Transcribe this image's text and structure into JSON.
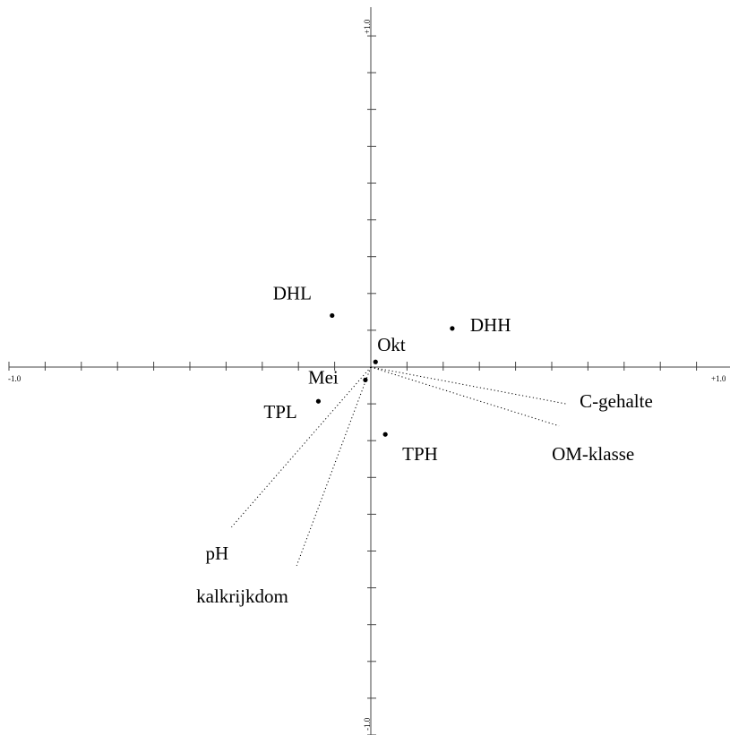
{
  "chart_data": {
    "type": "scatter",
    "title": "",
    "xlabel": "",
    "ylabel": "",
    "xlim": [
      -1.0,
      1.0
    ],
    "ylim": [
      -1.0,
      1.0
    ],
    "grid": false,
    "tick_step": 0.1,
    "tick_labels": {
      "x_min": "-1.0",
      "x_max": "+1.0",
      "y_max": "+1.0",
      "y_min": "-1.0"
    },
    "points": [
      {
        "label": "DHL",
        "x": -0.107,
        "y": 0.14
      },
      {
        "label": "DHH",
        "x": 0.225,
        "y": 0.105
      },
      {
        "label": "Okt",
        "x": 0.013,
        "y": 0.014
      },
      {
        "label": "Mei",
        "x": -0.015,
        "y": -0.035
      },
      {
        "label": "TPL",
        "x": -0.145,
        "y": -0.093
      },
      {
        "label": "TPH",
        "x": 0.04,
        "y": -0.183
      }
    ],
    "vectors": [
      {
        "label": "C-gehalte",
        "x": 0.54,
        "y": -0.1
      },
      {
        "label": "OM-klasse",
        "x": 0.52,
        "y": -0.16
      },
      {
        "label": "pH",
        "x": -0.385,
        "y": -0.435
      },
      {
        "label": "kalkrijkdom",
        "x": -0.205,
        "y": -0.54
      }
    ]
  }
}
